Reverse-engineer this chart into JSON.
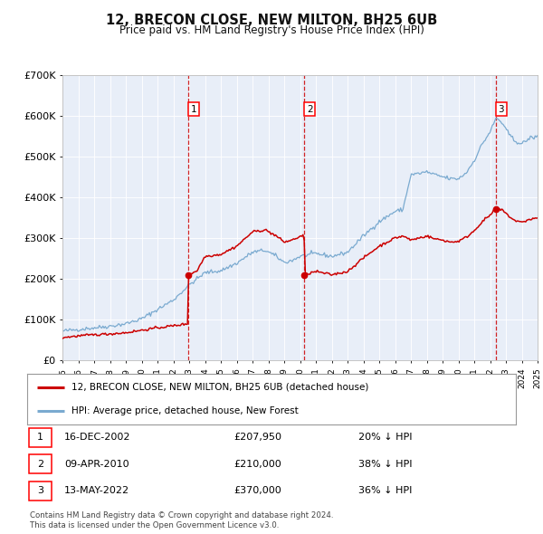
{
  "title": "12, BRECON CLOSE, NEW MILTON, BH25 6UB",
  "subtitle": "Price paid vs. HM Land Registry's House Price Index (HPI)",
  "background_color": "#ffffff",
  "plot_bg_color": "#e8eef8",
  "ylim": [
    0,
    700000
  ],
  "yticks": [
    0,
    100000,
    200000,
    300000,
    400000,
    500000,
    600000,
    700000
  ],
  "ytick_labels": [
    "£0",
    "£100K",
    "£200K",
    "£300K",
    "£400K",
    "£500K",
    "£600K",
    "£700K"
  ],
  "sale_dates_num": [
    2002.96,
    2010.27,
    2022.36
  ],
  "sale_prices": [
    207950,
    210000,
    370000
  ],
  "sale_labels": [
    "1",
    "2",
    "3"
  ],
  "legend_entries": [
    "12, BRECON CLOSE, NEW MILTON, BH25 6UB (detached house)",
    "HPI: Average price, detached house, New Forest"
  ],
  "legend_colors": [
    "#cc0000",
    "#7aaad0"
  ],
  "table_rows": [
    [
      "1",
      "16-DEC-2002",
      "£207,950",
      "20% ↓ HPI"
    ],
    [
      "2",
      "09-APR-2010",
      "£210,000",
      "38% ↓ HPI"
    ],
    [
      "3",
      "13-MAY-2022",
      "£370,000",
      "36% ↓ HPI"
    ]
  ],
  "footer": "Contains HM Land Registry data © Crown copyright and database right 2024.\nThis data is licensed under the Open Government Licence v3.0.",
  "hpi_color": "#7aaad0",
  "price_color": "#cc0000",
  "vline_color": "#cc0000"
}
